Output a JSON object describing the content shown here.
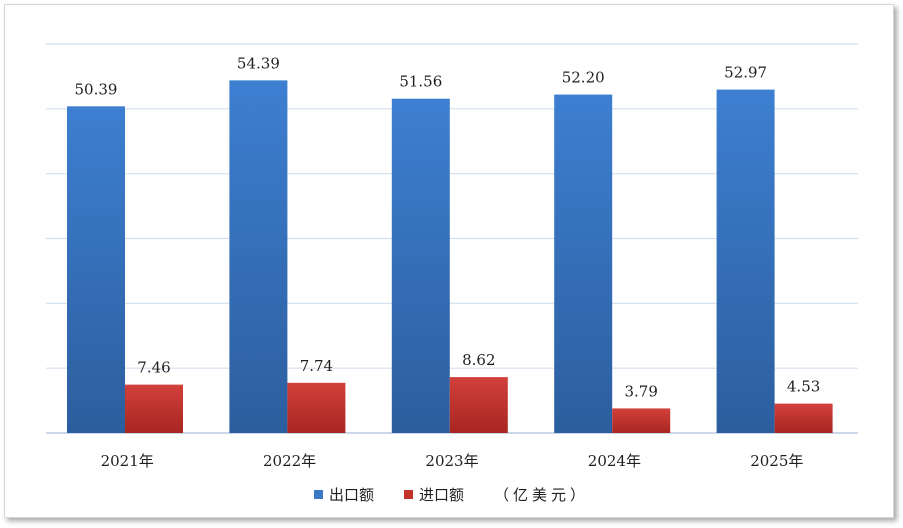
{
  "chart_data": {
    "type": "bar",
    "categories": [
      "2021年",
      "2022年",
      "2023年",
      "2024年",
      "2025年"
    ],
    "series": [
      {
        "name": "出口额",
        "values": [
          50.39,
          54.39,
          51.56,
          52.2,
          52.97
        ],
        "color": "#3a78c8"
      },
      {
        "name": "进口额",
        "values": [
          7.46,
          7.74,
          8.62,
          3.79,
          4.53
        ],
        "color": "#c5312b"
      }
    ],
    "unit_label": "（亿美元）",
    "ylim": [
      0,
      60
    ],
    "grid": true,
    "y_tick_labels_shown": false,
    "legend_position": "bottom"
  }
}
